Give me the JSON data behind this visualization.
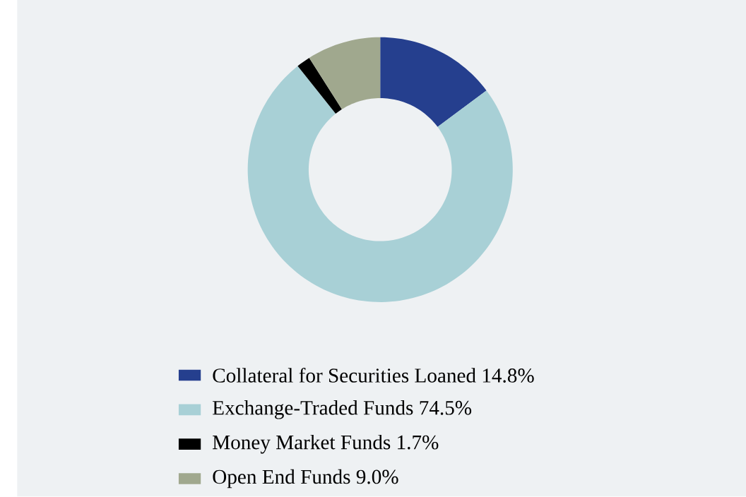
{
  "chart_data": {
    "type": "donut",
    "categories": [
      "Collateral for Securities Loaned",
      "Exchange-Traded Funds",
      "Money Market Funds",
      "Open End Funds"
    ],
    "values": [
      14.8,
      74.5,
      1.7,
      9.0
    ],
    "value_labels": [
      "14.8%",
      "74.5%",
      "1.7%",
      "9.0%"
    ],
    "colors": [
      "#253f8e",
      "#a8d0d6",
      "#000000",
      "#a0a88e"
    ],
    "legend": "bottom"
  }
}
